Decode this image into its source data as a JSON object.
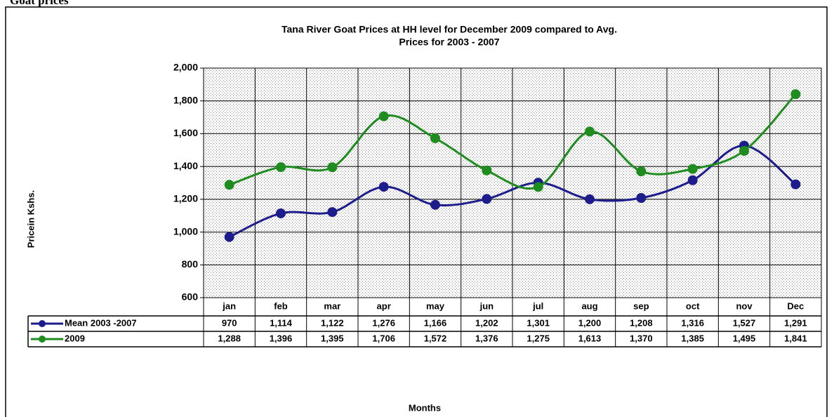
{
  "heading": "Goat prices",
  "chart_data": {
    "type": "line",
    "title": "Tana River Goat Prices at HH level for December 2009 compared to Avg. Prices for 2003 - 2007",
    "title_lines": [
      "Tana River Goat Prices at HH level for December 2009 compared to Avg.",
      "Prices for 2003 - 2007"
    ],
    "x_label": "Months",
    "y_label": "Pricein Kshs.",
    "categories": [
      "jan",
      "feb",
      "mar",
      "apr",
      "may",
      "jun",
      "jul",
      "aug",
      "sep",
      "oct",
      "nov",
      "Dec"
    ],
    "series": [
      {
        "name": "Mean 2003 -2007",
        "color": "#1c1c8c",
        "values": [
          970,
          1114,
          1122,
          1276,
          1166,
          1202,
          1301,
          1200,
          1208,
          1316,
          1527,
          1291
        ],
        "value_labels": [
          "970",
          "1,114",
          "1,122",
          "1,276",
          "1,166",
          "1,202",
          "1,301",
          "1,200",
          "1,208",
          "1,316",
          "1,527",
          "1,291"
        ]
      },
      {
        "name": "2009",
        "color": "#1e8c1e",
        "values": [
          1288,
          1396,
          1395,
          1706,
          1572,
          1376,
          1275,
          1613,
          1370,
          1385,
          1495,
          1841
        ],
        "value_labels": [
          "1,288",
          "1,396",
          "1,395",
          "1,706",
          "1,572",
          "1,376",
          "1,275",
          "1,613",
          "1,370",
          "1,385",
          "1,495",
          "1,841"
        ]
      }
    ],
    "ylim": [
      600,
      2000
    ],
    "yticks": [
      600,
      800,
      {
        "value": 1000,
        "label": "1,000"
      },
      {
        "value": 1200,
        "label": "1,200"
      },
      {
        "value": 1400,
        "label": "1,400"
      },
      {
        "value": 1600,
        "label": "1,600"
      },
      {
        "value": 1800,
        "label": "1,800"
      },
      {
        "value": 2000,
        "label": "2,000"
      }
    ],
    "grid": true,
    "smooth": true
  }
}
